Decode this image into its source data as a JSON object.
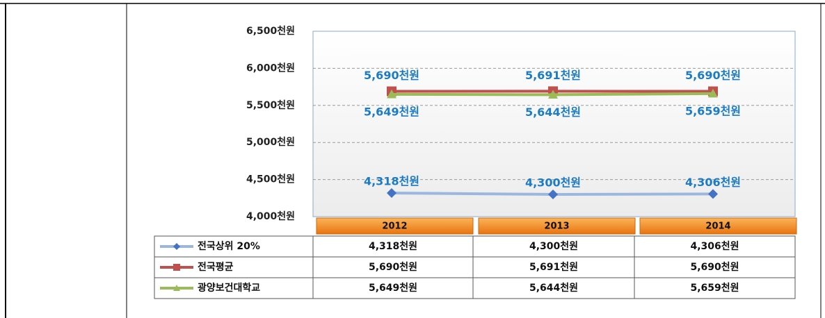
{
  "chart_data": {
    "type": "line",
    "categories": [
      "2012",
      "2013",
      "2014"
    ],
    "ylim": [
      4000,
      6500
    ],
    "yticks": [
      {
        "value": 4000,
        "label": "4,000천원"
      },
      {
        "value": 4500,
        "label": "4,500천원"
      },
      {
        "value": 5000,
        "label": "5,000천원"
      },
      {
        "value": 5500,
        "label": "5,500천원"
      },
      {
        "value": 6000,
        "label": "6,000천원"
      },
      {
        "value": 6500,
        "label": "6,500천원"
      }
    ],
    "grid": true,
    "series": [
      {
        "name": "전국상위 20%",
        "color": "#9bb7e0",
        "marker_color": "#4472c4",
        "marker": "diamond",
        "label_position": "above",
        "values": [
          4318,
          4300,
          4306
        ],
        "value_labels": [
          "4,318천원",
          "4,300천원",
          "4,306천원"
        ]
      },
      {
        "name": "전국평균",
        "color": "#c0504d",
        "marker_color": "#c0504d",
        "marker": "square",
        "label_position": "above",
        "values": [
          5690,
          5691,
          5690
        ],
        "value_labels": [
          "5,690천원",
          "5,691천원",
          "5,690천원"
        ]
      },
      {
        "name": "광양보건대학교",
        "color": "#9bbb59",
        "marker_color": "#9bbb59",
        "marker": "triangle",
        "label_position": "below",
        "values": [
          5649,
          5644,
          5659
        ],
        "value_labels": [
          "5,649천원",
          "5,644천원",
          "5,659천원"
        ]
      }
    ]
  }
}
